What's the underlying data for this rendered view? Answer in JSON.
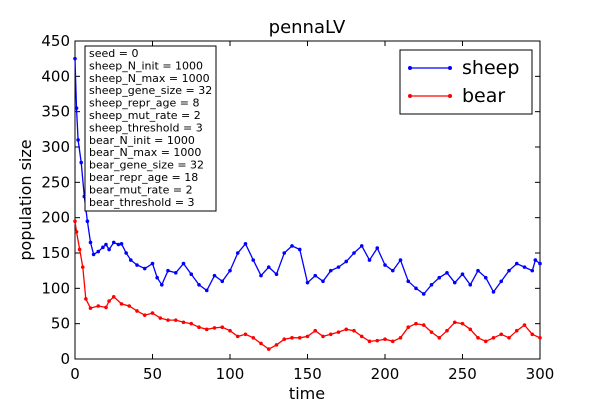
{
  "chart_data": {
    "type": "line",
    "title": "pennaLV",
    "xlabel": "time",
    "ylabel": "population size",
    "xlim": [
      0,
      300
    ],
    "ylim": [
      0,
      450
    ],
    "xticks": [
      "0",
      "50",
      "100",
      "150",
      "200",
      "250",
      "300"
    ],
    "yticks": [
      "0",
      "50",
      "100",
      "150",
      "200",
      "250",
      "300",
      "350",
      "400",
      "450"
    ],
    "grid": false,
    "legend_position": "top-right",
    "parameters": [
      "seed = 0",
      "sheep_N_init = 1000",
      "sheep_N_max = 1000",
      "sheep_gene_size = 32",
      "sheep_repr_age = 8",
      "sheep_mut_rate = 2",
      "sheep_threshold = 3",
      "bear_N_init = 1000",
      "bear_N_max = 1000",
      "bear_gene_size = 32",
      "bear_repr_age = 18",
      "bear_mut_rate = 2",
      "bear_threshold = 3"
    ],
    "series": [
      {
        "name": "sheep",
        "color": "#0000ff",
        "points": [
          [
            0,
            425
          ],
          [
            1,
            355
          ],
          [
            2,
            310
          ],
          [
            4,
            278
          ],
          [
            6,
            230
          ],
          [
            8,
            195
          ],
          [
            10,
            165
          ],
          [
            12,
            148
          ],
          [
            15,
            152
          ],
          [
            18,
            158
          ],
          [
            20,
            162
          ],
          [
            22,
            155
          ],
          [
            25,
            165
          ],
          [
            28,
            162
          ],
          [
            30,
            163
          ],
          [
            33,
            150
          ],
          [
            36,
            140
          ],
          [
            40,
            133
          ],
          [
            45,
            128
          ],
          [
            50,
            135
          ],
          [
            53,
            115
          ],
          [
            56,
            105
          ],
          [
            60,
            125
          ],
          [
            65,
            122
          ],
          [
            70,
            135
          ],
          [
            75,
            120
          ],
          [
            80,
            105
          ],
          [
            85,
            97
          ],
          [
            90,
            118
          ],
          [
            95,
            110
          ],
          [
            100,
            125
          ],
          [
            105,
            150
          ],
          [
            110,
            163
          ],
          [
            115,
            140
          ],
          [
            120,
            118
          ],
          [
            125,
            130
          ],
          [
            130,
            120
          ],
          [
            135,
            150
          ],
          [
            140,
            160
          ],
          [
            145,
            155
          ],
          [
            150,
            108
          ],
          [
            155,
            118
          ],
          [
            160,
            110
          ],
          [
            165,
            125
          ],
          [
            170,
            130
          ],
          [
            175,
            138
          ],
          [
            180,
            150
          ],
          [
            185,
            160
          ],
          [
            190,
            140
          ],
          [
            195,
            157
          ],
          [
            200,
            133
          ],
          [
            205,
            125
          ],
          [
            210,
            140
          ],
          [
            215,
            110
          ],
          [
            220,
            100
          ],
          [
            225,
            92
          ],
          [
            230,
            105
          ],
          [
            235,
            115
          ],
          [
            240,
            122
          ],
          [
            245,
            108
          ],
          [
            250,
            120
          ],
          [
            255,
            105
          ],
          [
            260,
            125
          ],
          [
            265,
            115
          ],
          [
            270,
            95
          ],
          [
            275,
            110
          ],
          [
            280,
            125
          ],
          [
            285,
            135
          ],
          [
            290,
            130
          ],
          [
            295,
            125
          ],
          [
            297,
            140
          ],
          [
            300,
            135
          ]
        ]
      },
      {
        "name": "bear",
        "color": "#ff0000",
        "points": [
          [
            0,
            195
          ],
          [
            1,
            180
          ],
          [
            3,
            155
          ],
          [
            5,
            130
          ],
          [
            7,
            85
          ],
          [
            10,
            72
          ],
          [
            15,
            75
          ],
          [
            20,
            73
          ],
          [
            22,
            82
          ],
          [
            25,
            88
          ],
          [
            30,
            78
          ],
          [
            35,
            75
          ],
          [
            40,
            68
          ],
          [
            45,
            62
          ],
          [
            50,
            65
          ],
          [
            55,
            58
          ],
          [
            60,
            55
          ],
          [
            65,
            55
          ],
          [
            70,
            52
          ],
          [
            75,
            50
          ],
          [
            80,
            45
          ],
          [
            85,
            42
          ],
          [
            90,
            44
          ],
          [
            95,
            45
          ],
          [
            100,
            40
          ],
          [
            105,
            32
          ],
          [
            110,
            35
          ],
          [
            115,
            30
          ],
          [
            120,
            22
          ],
          [
            125,
            14
          ],
          [
            130,
            20
          ],
          [
            135,
            28
          ],
          [
            140,
            30
          ],
          [
            145,
            30
          ],
          [
            150,
            32
          ],
          [
            155,
            40
          ],
          [
            160,
            32
          ],
          [
            165,
            35
          ],
          [
            170,
            38
          ],
          [
            175,
            42
          ],
          [
            180,
            40
          ],
          [
            185,
            32
          ],
          [
            190,
            25
          ],
          [
            195,
            26
          ],
          [
            200,
            28
          ],
          [
            205,
            25
          ],
          [
            210,
            30
          ],
          [
            215,
            45
          ],
          [
            220,
            50
          ],
          [
            225,
            48
          ],
          [
            230,
            38
          ],
          [
            235,
            30
          ],
          [
            240,
            40
          ],
          [
            245,
            52
          ],
          [
            250,
            50
          ],
          [
            255,
            42
          ],
          [
            260,
            30
          ],
          [
            265,
            25
          ],
          [
            270,
            30
          ],
          [
            275,
            35
          ],
          [
            280,
            30
          ],
          [
            285,
            40
          ],
          [
            290,
            48
          ],
          [
            295,
            35
          ],
          [
            300,
            30
          ]
        ]
      }
    ]
  }
}
